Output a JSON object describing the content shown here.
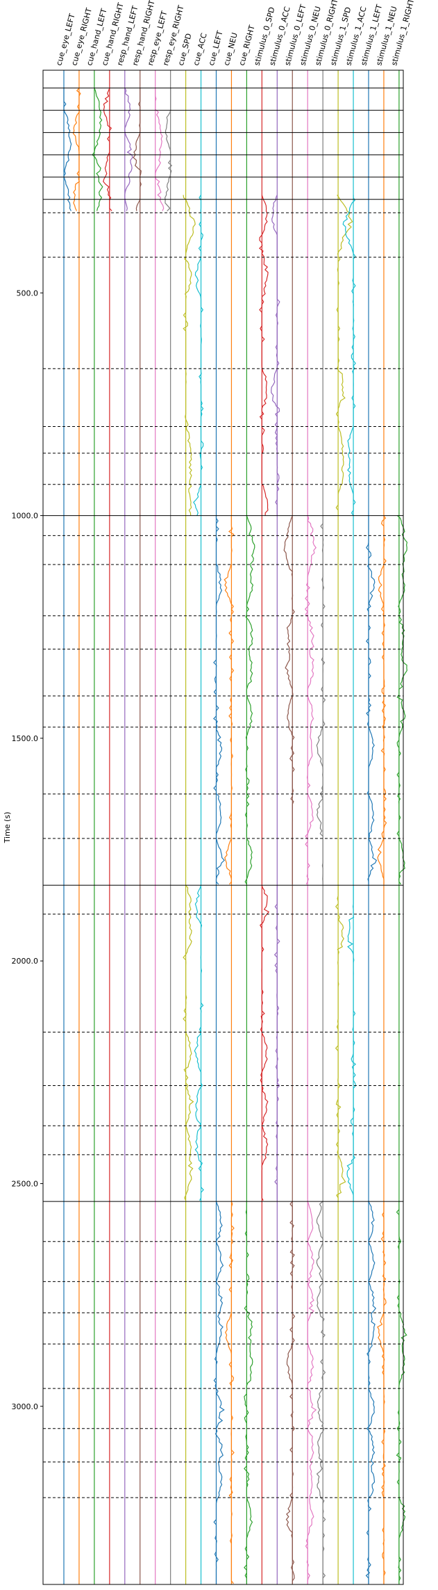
{
  "chart_data": {
    "type": "line",
    "title": "",
    "xlabel": "",
    "ylabel": "Time (s)",
    "ylim": [
      3400,
      0
    ],
    "y_inverted": true,
    "y_ticks": [
      500,
      1000,
      1500,
      2000,
      2500,
      3000
    ],
    "y_tick_labels": [
      "500.0",
      "1000.0",
      "1500.0",
      "2000.0",
      "2500.0",
      "3000.0"
    ],
    "grid": false,
    "legend": "none",
    "series": [
      {
        "name": "cue_eye_LEFT",
        "color": "#1f77b4"
      },
      {
        "name": "cue_eye_RIGHT",
        "color": "#ff7f0e"
      },
      {
        "name": "cue_hand_LEFT",
        "color": "#2ca02c"
      },
      {
        "name": "cue_hand_RIGHT",
        "color": "#d62728"
      },
      {
        "name": "resp_hand_LEFT",
        "color": "#9467bd"
      },
      {
        "name": "resp_hand_RIGHT",
        "color": "#8c564b"
      },
      {
        "name": "resp_eye_LEFT",
        "color": "#e377c2"
      },
      {
        "name": "resp_eye_RIGHT",
        "color": "#7f7f7f"
      },
      {
        "name": "cue_SPD",
        "color": "#bcbd22"
      },
      {
        "name": "cue_ACC",
        "color": "#17becf"
      },
      {
        "name": "cue_LEFT",
        "color": "#1f77b4"
      },
      {
        "name": "cue_NEU",
        "color": "#ff7f0e"
      },
      {
        "name": "cue_RIGHT",
        "color": "#2ca02c"
      },
      {
        "name": "stimulus_0_SPD",
        "color": "#d62728"
      },
      {
        "name": "stimulus_0_ACC",
        "color": "#9467bd"
      },
      {
        "name": "stimulus_0_LEFT",
        "color": "#8c564b"
      },
      {
        "name": "stimulus_0_NEU",
        "color": "#e377c2"
      },
      {
        "name": "stimulus_0_RIGHT",
        "color": "#7f7f7f"
      },
      {
        "name": "stimulus_1_SPD",
        "color": "#bcbd22"
      },
      {
        "name": "stimulus_1_ACC",
        "color": "#17becf"
      },
      {
        "name": "stimulus_1_LEFT",
        "color": "#1f77b4"
      },
      {
        "name": "stimulus_1_NEU",
        "color": "#ff7f0e"
      },
      {
        "name": "stimulus_1_RIGHT",
        "color": "#2ca02c"
      }
    ],
    "run_boundaries_solid": [
      40,
      90,
      140,
      190,
      240,
      290,
      1000,
      1830,
      2540
    ],
    "block_boundaries_dashed": [
      320,
      420,
      670,
      800,
      860,
      930,
      1045,
      1110,
      1225,
      1300,
      1405,
      1475,
      1625,
      1725,
      1895,
      2160,
      2280,
      2370,
      2435,
      2630,
      2720,
      2790,
      2860,
      2960,
      3050,
      3125,
      3205
    ],
    "segments": [
      {
        "y_range": [
          40,
          320
        ],
        "active_series": [
          "cue_eye_LEFT",
          "cue_eye_RIGHT",
          "cue_hand_LEFT",
          "cue_hand_RIGHT",
          "resp_hand_LEFT",
          "resp_hand_RIGHT",
          "resp_eye_LEFT",
          "resp_eye_RIGHT"
        ]
      },
      {
        "y_range": [
          280,
          1000
        ],
        "active_series": [
          "cue_SPD",
          "cue_ACC",
          "stimulus_0_SPD",
          "stimulus_0_ACC",
          "stimulus_1_SPD",
          "stimulus_1_ACC"
        ]
      },
      {
        "y_range": [
          1000,
          1830
        ],
        "active_series": [
          "cue_LEFT",
          "cue_NEU",
          "cue_RIGHT",
          "stimulus_0_LEFT",
          "stimulus_0_NEU",
          "stimulus_0_RIGHT",
          "stimulus_1_LEFT",
          "stimulus_1_NEU",
          "stimulus_1_RIGHT"
        ]
      },
      {
        "y_range": [
          1830,
          2540
        ],
        "active_series": [
          "cue_SPD",
          "cue_ACC",
          "stimulus_0_SPD",
          "stimulus_0_ACC",
          "stimulus_1_SPD",
          "stimulus_1_ACC"
        ]
      },
      {
        "y_range": [
          2540,
          3400
        ],
        "active_series": [
          "cue_LEFT",
          "cue_NEU",
          "cue_RIGHT",
          "stimulus_0_LEFT",
          "stimulus_0_NEU",
          "stimulus_0_RIGHT",
          "stimulus_1_LEFT",
          "stimulus_1_NEU",
          "stimulus_1_RIGHT"
        ]
      }
    ]
  }
}
